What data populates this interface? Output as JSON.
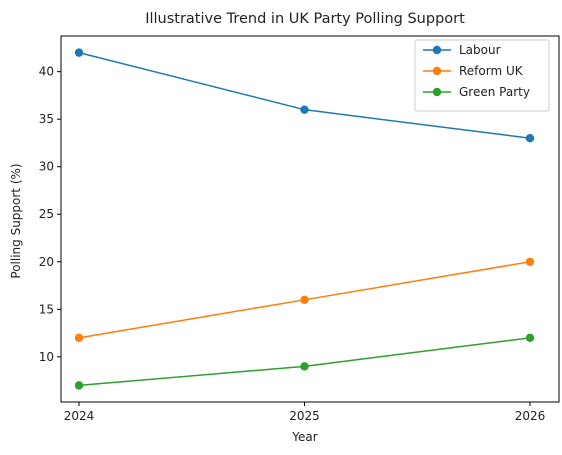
{
  "chart_data": {
    "type": "line",
    "title": "Illustrative Trend in UK Party Polling Support",
    "xlabel": "Year",
    "ylabel": "Polling Support (%)",
    "x": [
      "2024",
      "2025",
      "2026"
    ],
    "ylim": [
      5.25,
      43.75
    ],
    "yticks": [
      10,
      15,
      20,
      25,
      30,
      35,
      40
    ],
    "grid": false,
    "legend_position": "top-right",
    "series": [
      {
        "name": "Labour",
        "color": "#1f77b4",
        "values": [
          42,
          36,
          33
        ]
      },
      {
        "name": "Reform UK",
        "color": "#ff7f0e",
        "values": [
          12,
          16,
          20
        ]
      },
      {
        "name": "Green Party",
        "color": "#2ca02c",
        "values": [
          7,
          9,
          12
        ]
      }
    ]
  }
}
